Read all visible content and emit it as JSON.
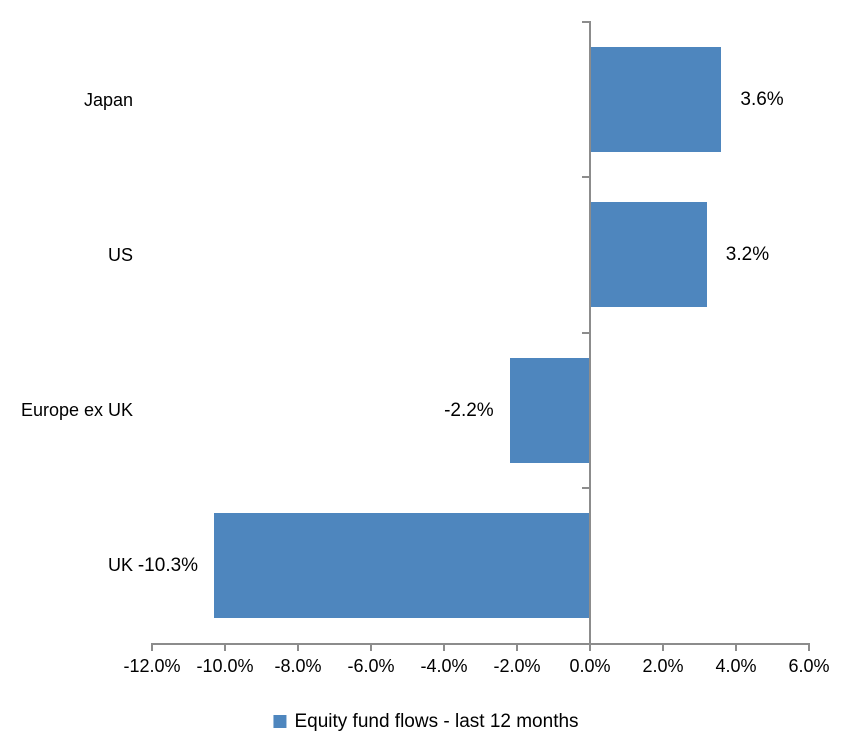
{
  "chart_data": {
    "type": "bar",
    "orientation": "horizontal",
    "title": "",
    "categories": [
      "Japan",
      "US",
      "Europe ex UK",
      "UK"
    ],
    "values": [
      3.6,
      3.2,
      -2.2,
      -10.3
    ],
    "data_labels": [
      "3.6%",
      "3.2%",
      "-2.2%",
      "-10.3%"
    ],
    "series_name": "Equity fund flows - last 12 months",
    "xlabel": "",
    "ylabel": "",
    "xlim": [
      -12,
      6
    ],
    "x_tick_step": 2,
    "x_ticks": [
      -12,
      -10,
      -8,
      -6,
      -4,
      -2,
      0,
      2,
      4,
      6
    ],
    "x_tick_labels": [
      "-12.0%",
      "-10.0%",
      "-8.0%",
      "-6.0%",
      "-4.0%",
      "-2.0%",
      "0.0%",
      "2.0%",
      "4.0%",
      "6.0%"
    ],
    "grid": false,
    "legend_position": "bottom"
  },
  "legend": {
    "label": "Equity fund flows - last 12 months"
  },
  "colors": {
    "bar": "#4E86BE",
    "axis": "#8C8C8C",
    "text": "#000000",
    "background": "#FFFFFF"
  }
}
